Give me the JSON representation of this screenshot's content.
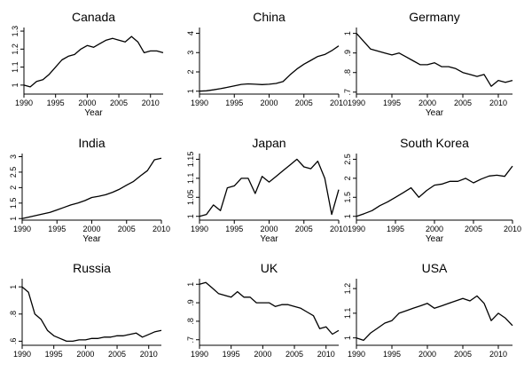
{
  "chart_data": [
    {
      "type": "line",
      "title": "Canada",
      "xlabel": "Year",
      "ylabel": "",
      "xlim": [
        1990,
        2012
      ],
      "ylim": [
        0.95,
        1.32
      ],
      "xticks": [
        1990,
        1995,
        2000,
        2005,
        2010
      ],
      "yticks": [
        1,
        1.1,
        1.2,
        1.3
      ],
      "ytick_labels": [
        "1",
        "1.1",
        "1.2",
        "1.3"
      ],
      "series": [
        {
          "x": [
            1990,
            1991,
            1992,
            1993,
            1994,
            1995,
            1996,
            1997,
            1998,
            1999,
            2000,
            2001,
            2002,
            2003,
            2004,
            2005,
            2006,
            2007,
            2008,
            2009,
            2010,
            2011,
            2012
          ],
          "y": [
            1.0,
            0.99,
            1.02,
            1.03,
            1.06,
            1.1,
            1.14,
            1.16,
            1.17,
            1.2,
            1.22,
            1.21,
            1.23,
            1.25,
            1.26,
            1.25,
            1.24,
            1.27,
            1.24,
            1.18,
            1.19,
            1.19,
            1.18
          ]
        }
      ]
    },
    {
      "type": "line",
      "title": "China",
      "xlabel": "",
      "ylabel": "",
      "xlim": [
        1990,
        2010
      ],
      "ylim": [
        0.85,
        4.3
      ],
      "xticks": [
        1990,
        1995,
        2000,
        2005,
        2010
      ],
      "yticks": [
        1,
        2,
        3,
        4
      ],
      "ytick_labels": [
        "1",
        "2",
        "3",
        "4"
      ],
      "series": [
        {
          "x": [
            1990,
            1991,
            1992,
            1993,
            1994,
            1995,
            1996,
            1997,
            1998,
            1999,
            2000,
            2001,
            2002,
            2003,
            2004,
            2005,
            2006,
            2007,
            2008,
            2009,
            2010
          ],
          "y": [
            1.0,
            1.02,
            1.07,
            1.13,
            1.2,
            1.28,
            1.35,
            1.38,
            1.36,
            1.34,
            1.36,
            1.4,
            1.5,
            1.85,
            2.15,
            2.4,
            2.6,
            2.8,
            2.9,
            3.1,
            3.35
          ]
        }
      ]
    },
    {
      "type": "line",
      "title": "Germany",
      "xlabel": "Year",
      "ylabel": "",
      "xlim": [
        1990,
        2012
      ],
      "ylim": [
        0.69,
        1.03
      ],
      "xticks": [
        1990,
        1995,
        2000,
        2005,
        2010
      ],
      "yticks": [
        0.7,
        0.8,
        0.9,
        1
      ],
      "ytick_labels": [
        ".7",
        ".8",
        ".9",
        "1"
      ],
      "series": [
        {
          "x": [
            1990,
            1991,
            1992,
            1993,
            1994,
            1995,
            1996,
            1997,
            1998,
            1999,
            2000,
            2001,
            2002,
            2003,
            2004,
            2005,
            2006,
            2007,
            2008,
            2009,
            2010,
            2011,
            2012
          ],
          "y": [
            1.0,
            0.96,
            0.92,
            0.91,
            0.9,
            0.89,
            0.9,
            0.88,
            0.86,
            0.84,
            0.84,
            0.85,
            0.83,
            0.83,
            0.82,
            0.8,
            0.79,
            0.78,
            0.79,
            0.73,
            0.76,
            0.75,
            0.76
          ]
        }
      ]
    },
    {
      "type": "line",
      "title": "India",
      "xlabel": "Year",
      "ylabel": "",
      "xlim": [
        1990,
        2010
      ],
      "ylim": [
        0.95,
        3.1
      ],
      "xticks": [
        1990,
        1995,
        2000,
        2005,
        2010
      ],
      "yticks": [
        1,
        1.5,
        2,
        2.5,
        3
      ],
      "ytick_labels": [
        "1",
        "1.5",
        "2",
        "2.5",
        "3"
      ],
      "series": [
        {
          "x": [
            1990,
            1991,
            1992,
            1993,
            1994,
            1995,
            1996,
            1997,
            1998,
            1999,
            2000,
            2001,
            2002,
            2003,
            2004,
            2005,
            2006,
            2007,
            2008,
            2009,
            2010
          ],
          "y": [
            1.0,
            1.05,
            1.1,
            1.15,
            1.2,
            1.28,
            1.36,
            1.44,
            1.5,
            1.58,
            1.68,
            1.72,
            1.77,
            1.85,
            1.95,
            2.08,
            2.2,
            2.38,
            2.55,
            2.9,
            2.95
          ]
        }
      ]
    },
    {
      "type": "line",
      "title": "Japan",
      "xlabel": "Year",
      "ylabel": "",
      "xlim": [
        1990,
        2010
      ],
      "ylim": [
        0.99,
        1.165
      ],
      "xticks": [
        1990,
        1995,
        2000,
        2005,
        2010
      ],
      "yticks": [
        1,
        1.05,
        1.1,
        1.15
      ],
      "ytick_labels": [
        "1",
        "1.05",
        "1.1",
        "1.15"
      ],
      "series": [
        {
          "x": [
            1990,
            1991,
            1992,
            1993,
            1994,
            1995,
            1996,
            1997,
            1998,
            1999,
            2000,
            2001,
            2002,
            2003,
            2004,
            2005,
            2006,
            2007,
            2008,
            2009,
            2010
          ],
          "y": [
            1.0,
            1.005,
            1.03,
            1.015,
            1.075,
            1.08,
            1.1,
            1.1,
            1.06,
            1.105,
            1.09,
            1.105,
            1.12,
            1.135,
            1.15,
            1.13,
            1.125,
            1.145,
            1.1,
            1.005,
            1.07
          ]
        }
      ]
    },
    {
      "type": "line",
      "title": "South Korea",
      "xlabel": "Year",
      "ylabel": "",
      "xlim": [
        1990,
        2010
      ],
      "ylim": [
        0.9,
        2.65
      ],
      "xticks": [
        1990,
        1995,
        2000,
        2005,
        2010
      ],
      "yticks": [
        1,
        1.5,
        2,
        2.5
      ],
      "ytick_labels": [
        "1",
        "1.5",
        "2",
        "2.5"
      ],
      "series": [
        {
          "x": [
            1990,
            1991,
            1992,
            1993,
            1994,
            1995,
            1996,
            1997,
            1998,
            1999,
            2000,
            2001,
            2002,
            2003,
            2004,
            2005,
            2006,
            2007,
            2008,
            2009,
            2010
          ],
          "y": [
            1.0,
            1.07,
            1.15,
            1.28,
            1.38,
            1.5,
            1.62,
            1.75,
            1.5,
            1.68,
            1.82,
            1.85,
            1.92,
            1.92,
            2.0,
            1.88,
            1.98,
            2.06,
            2.08,
            2.05,
            2.32
          ]
        }
      ]
    },
    {
      "type": "line",
      "title": "Russia",
      "xlabel": "",
      "ylabel": "",
      "xlim": [
        1990,
        2012
      ],
      "ylim": [
        0.57,
        1.06
      ],
      "xticks": [
        1990,
        1995,
        2000,
        2005,
        2010
      ],
      "yticks": [
        0.6,
        0.8,
        1
      ],
      "ytick_labels": [
        ".6",
        ".8",
        "1"
      ],
      "series": [
        {
          "x": [
            1990,
            1991,
            1992,
            1993,
            1994,
            1995,
            1996,
            1997,
            1998,
            1999,
            2000,
            2001,
            2002,
            2003,
            2004,
            2005,
            2006,
            2007,
            2008,
            2009,
            2010,
            2011,
            2012
          ],
          "y": [
            1.0,
            0.96,
            0.8,
            0.76,
            0.68,
            0.64,
            0.62,
            0.6,
            0.6,
            0.61,
            0.61,
            0.62,
            0.62,
            0.63,
            0.63,
            0.64,
            0.64,
            0.65,
            0.66,
            0.63,
            0.65,
            0.67,
            0.68
          ]
        }
      ]
    },
    {
      "type": "line",
      "title": "UK",
      "xlabel": "",
      "ylabel": "",
      "xlim": [
        1990,
        2012
      ],
      "ylim": [
        0.67,
        1.03
      ],
      "xticks": [
        1990,
        1995,
        2000,
        2005,
        2010
      ],
      "yticks": [
        0.7,
        0.8,
        0.9,
        1
      ],
      "ytick_labels": [
        ".7",
        ".8",
        ".9",
        "1"
      ],
      "series": [
        {
          "x": [
            1990,
            1991,
            1992,
            1993,
            1994,
            1995,
            1996,
            1997,
            1998,
            1999,
            2000,
            2001,
            2002,
            2003,
            2004,
            2005,
            2006,
            2007,
            2008,
            2009,
            2010,
            2011,
            2012
          ],
          "y": [
            1.0,
            1.01,
            0.98,
            0.95,
            0.94,
            0.93,
            0.96,
            0.93,
            0.93,
            0.9,
            0.9,
            0.9,
            0.88,
            0.89,
            0.89,
            0.88,
            0.87,
            0.85,
            0.83,
            0.76,
            0.77,
            0.73,
            0.75
          ]
        }
      ]
    },
    {
      "type": "line",
      "title": "USA",
      "xlabel": "",
      "ylabel": "",
      "xlim": [
        1990,
        2012
      ],
      "ylim": [
        0.97,
        1.24
      ],
      "xticks": [
        1990,
        1995,
        2000,
        2005,
        2010
      ],
      "yticks": [
        1,
        1.1,
        1.2
      ],
      "ytick_labels": [
        "1",
        "1.1",
        "1.2"
      ],
      "series": [
        {
          "x": [
            1990,
            1991,
            1992,
            1993,
            1994,
            1995,
            1996,
            1997,
            1998,
            1999,
            2000,
            2001,
            2002,
            2003,
            2004,
            2005,
            2006,
            2007,
            2008,
            2009,
            2010,
            2011,
            2012
          ],
          "y": [
            1.0,
            0.99,
            1.02,
            1.04,
            1.06,
            1.07,
            1.1,
            1.11,
            1.12,
            1.13,
            1.14,
            1.12,
            1.13,
            1.14,
            1.15,
            1.16,
            1.15,
            1.17,
            1.14,
            1.07,
            1.1,
            1.08,
            1.05
          ]
        }
      ]
    }
  ]
}
